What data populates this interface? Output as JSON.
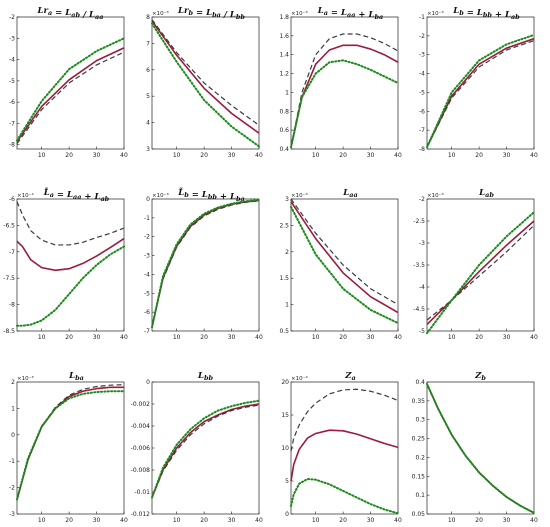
{
  "chart_data": [
    {
      "type": "line",
      "title": "Lr_a = L_ab / L_aa",
      "x": [
        1,
        40
      ],
      "xticks": [
        10,
        20,
        30,
        40
      ],
      "ylim": [
        -8.2,
        -2
      ],
      "yticks": [
        -8,
        -7,
        -6,
        -5,
        -4,
        -3,
        -2
      ],
      "ytick_labels": [
        "-8",
        "-7",
        "-6",
        "-5",
        "-4",
        "-3",
        "-2"
      ],
      "exponent": "",
      "series": [
        {
          "style": "solid",
          "x": [
            1,
            10,
            20,
            30,
            40
          ],
          "values": [
            -7.85,
            -6.2,
            -4.95,
            -4.05,
            -3.45
          ]
        },
        {
          "style": "dashed",
          "x": [
            1,
            10,
            20,
            30,
            40
          ],
          "values": [
            -7.95,
            -6.35,
            -5.1,
            -4.25,
            -3.65
          ]
        },
        {
          "style": "dotted",
          "x": [
            1,
            10,
            20,
            30,
            40
          ],
          "values": [
            -7.8,
            -5.95,
            -4.45,
            -3.6,
            -3.0
          ]
        }
      ]
    },
    {
      "type": "line",
      "title": "Lr_b = L_ba / L_bb",
      "x": [
        1,
        40
      ],
      "xticks": [
        10,
        20,
        30,
        40
      ],
      "ylim": [
        3,
        8
      ],
      "yticks": [
        3,
        4,
        5,
        6,
        7,
        8
      ],
      "ytick_labels": [
        "3",
        "4",
        "5",
        "6",
        "7",
        "8"
      ],
      "exponent": "×10⁻³",
      "series": [
        {
          "style": "solid",
          "x": [
            1,
            10,
            20,
            30,
            40
          ],
          "values": [
            7.85,
            6.55,
            5.3,
            4.35,
            3.6
          ]
        },
        {
          "style": "dashed",
          "x": [
            1,
            10,
            20,
            30,
            40
          ],
          "values": [
            7.9,
            6.65,
            5.5,
            4.65,
            3.9
          ]
        },
        {
          "style": "dotted",
          "x": [
            1,
            10,
            20,
            30,
            40
          ],
          "values": [
            7.75,
            6.3,
            4.85,
            3.85,
            3.1
          ]
        }
      ]
    },
    {
      "type": "line",
      "title": "L_a = L_aa + L_ba",
      "x": [
        1,
        40
      ],
      "xticks": [
        10,
        20,
        30,
        40
      ],
      "ylim": [
        0.4,
        1.8
      ],
      "yticks": [
        0.4,
        0.6,
        0.8,
        1,
        1.2,
        1.4,
        1.6,
        1.8
      ],
      "ytick_labels": [
        "0.4",
        "0.6",
        "0.8",
        "1",
        "1.2",
        "1.4",
        "1.6",
        "1.8"
      ],
      "exponent": "×10⁻³",
      "series": [
        {
          "style": "solid",
          "x": [
            1,
            5,
            10,
            15,
            20,
            25,
            30,
            35,
            40
          ],
          "values": [
            0.42,
            0.95,
            1.3,
            1.45,
            1.5,
            1.5,
            1.46,
            1.4,
            1.32
          ]
        },
        {
          "style": "dashed",
          "x": [
            1,
            5,
            10,
            15,
            20,
            25,
            30,
            35,
            40
          ],
          "values": [
            0.42,
            1.0,
            1.4,
            1.57,
            1.62,
            1.62,
            1.58,
            1.52,
            1.44
          ]
        },
        {
          "style": "dotted",
          "x": [
            1,
            5,
            10,
            15,
            20,
            25,
            30,
            35,
            40
          ],
          "values": [
            0.42,
            0.95,
            1.2,
            1.32,
            1.34,
            1.3,
            1.24,
            1.17,
            1.1
          ]
        }
      ]
    },
    {
      "type": "line",
      "title": "L_b = L_bb + L_ab",
      "x": [
        1,
        40
      ],
      "xticks": [
        10,
        20,
        30,
        40
      ],
      "ylim": [
        -8,
        -1
      ],
      "yticks": [
        -8,
        -7,
        -6,
        -5,
        -4,
        -3,
        -2,
        -1
      ],
      "ytick_labels": [
        "-8",
        "-7",
        "-6",
        "-5",
        "-4",
        "-3",
        "-2",
        "-1"
      ],
      "exponent": "×10⁻³",
      "series": [
        {
          "style": "solid",
          "x": [
            1,
            10,
            20,
            30,
            40
          ],
          "values": [
            -7.9,
            -5.2,
            -3.5,
            -2.65,
            -2.15
          ]
        },
        {
          "style": "dashed",
          "x": [
            1,
            10,
            20,
            30,
            40
          ],
          "values": [
            -7.9,
            -5.3,
            -3.65,
            -2.75,
            -2.25
          ]
        },
        {
          "style": "dotted",
          "x": [
            1,
            10,
            20,
            30,
            40
          ],
          "values": [
            -7.9,
            -5.0,
            -3.3,
            -2.45,
            -1.95
          ]
        }
      ]
    },
    {
      "type": "line",
      "title": "L̃_a = L_aa + L_ab",
      "x": [
        1,
        40
      ],
      "xticks": [
        10,
        20,
        30,
        40
      ],
      "ylim": [
        -8.5,
        -6
      ],
      "yticks": [
        -8.5,
        -8,
        -7.5,
        -7,
        -6.5,
        -6
      ],
      "ytick_labels": [
        "-8.5",
        "-8",
        "-7.5",
        "-7",
        "-6.5",
        "-6"
      ],
      "exponent": "×10⁻⁴",
      "series": [
        {
          "style": "solid",
          "x": [
            1,
            3,
            6,
            10,
            15,
            20,
            25,
            30,
            35,
            40
          ],
          "values": [
            -6.8,
            -6.9,
            -7.15,
            -7.3,
            -7.35,
            -7.32,
            -7.22,
            -7.08,
            -6.92,
            -6.75
          ]
        },
        {
          "style": "dashed",
          "x": [
            1,
            3,
            6,
            10,
            15,
            20,
            25,
            30,
            35,
            40
          ],
          "values": [
            -6.05,
            -6.3,
            -6.6,
            -6.78,
            -6.87,
            -6.87,
            -6.82,
            -6.73,
            -6.65,
            -6.55
          ]
        },
        {
          "style": "dotted",
          "x": [
            1,
            3,
            6,
            10,
            15,
            20,
            25,
            30,
            35,
            40
          ],
          "values": [
            -8.4,
            -8.4,
            -8.38,
            -8.3,
            -8.1,
            -7.8,
            -7.5,
            -7.25,
            -7.05,
            -6.9
          ]
        }
      ]
    },
    {
      "type": "line",
      "title": "L̃_b = L_bb + L_ba",
      "x": [
        1,
        40
      ],
      "xticks": [
        10,
        20,
        30,
        40
      ],
      "ylim": [
        -7,
        0
      ],
      "yticks": [
        -7,
        -6,
        -5,
        -4,
        -3,
        -2,
        -1,
        0
      ],
      "ytick_labels": [
        "-7",
        "-6",
        "-5",
        "-4",
        "-3",
        "-2",
        "-1",
        "0"
      ],
      "exponent": "×10⁻³",
      "series": [
        {
          "style": "solid",
          "x": [
            1,
            5,
            10,
            15,
            20,
            25,
            30,
            35,
            40
          ],
          "values": [
            -6.8,
            -4.2,
            -2.5,
            -1.45,
            -0.85,
            -0.5,
            -0.28,
            -0.15,
            -0.08
          ]
        },
        {
          "style": "dashed",
          "x": [
            1,
            5,
            10,
            15,
            20,
            25,
            30,
            35,
            40
          ],
          "values": [
            -6.8,
            -4.25,
            -2.55,
            -1.5,
            -0.9,
            -0.55,
            -0.32,
            -0.18,
            -0.1
          ]
        },
        {
          "style": "dotted",
          "x": [
            1,
            5,
            10,
            15,
            20,
            25,
            30,
            35,
            40
          ],
          "values": [
            -6.8,
            -4.1,
            -2.4,
            -1.35,
            -0.78,
            -0.45,
            -0.25,
            -0.12,
            -0.05
          ]
        }
      ]
    },
    {
      "type": "line",
      "title": "L_aa",
      "x": [
        1,
        40
      ],
      "xticks": [
        10,
        20,
        30,
        40
      ],
      "ylim": [
        0.5,
        3
      ],
      "yticks": [
        0.5,
        1,
        1.5,
        2,
        2.5,
        3
      ],
      "ytick_labels": [
        "0.5",
        "1",
        "1.5",
        "2",
        "2.5",
        "3"
      ],
      "exponent": "×10⁻³",
      "series": [
        {
          "style": "solid",
          "x": [
            1,
            10,
            20,
            30,
            40
          ],
          "values": [
            2.95,
            2.25,
            1.6,
            1.15,
            0.85
          ]
        },
        {
          "style": "dashed",
          "x": [
            1,
            10,
            20,
            30,
            40
          ],
          "values": [
            3.0,
            2.35,
            1.75,
            1.3,
            1.0
          ]
        },
        {
          "style": "dotted",
          "x": [
            1,
            10,
            20,
            30,
            40
          ],
          "values": [
            2.85,
            1.95,
            1.3,
            0.9,
            0.65
          ]
        }
      ]
    },
    {
      "type": "line",
      "title": "L_ab",
      "x": [
        1,
        40
      ],
      "xticks": [
        10,
        20,
        30,
        40
      ],
      "ylim": [
        -5,
        -2
      ],
      "yticks": [
        -5,
        -4.5,
        -4,
        -3.5,
        -3,
        -2.5,
        -2
      ],
      "ytick_labels": [
        "-5",
        "-4.5",
        "-4",
        "-3.5",
        "-3",
        "-2.5",
        "-2"
      ],
      "exponent": "×10⁻³",
      "series": [
        {
          "style": "solid",
          "x": [
            1,
            10,
            20,
            30,
            40
          ],
          "values": [
            -4.85,
            -4.3,
            -3.65,
            -3.05,
            -2.5
          ]
        },
        {
          "style": "dashed",
          "x": [
            1,
            10,
            20,
            30,
            40
          ],
          "values": [
            -4.75,
            -4.3,
            -3.75,
            -3.2,
            -2.6
          ]
        },
        {
          "style": "dotted",
          "x": [
            1,
            10,
            20,
            30,
            40
          ],
          "values": [
            -5.05,
            -4.3,
            -3.5,
            -2.85,
            -2.3
          ]
        }
      ]
    },
    {
      "type": "line",
      "title": "L_ba",
      "x": [
        1,
        40
      ],
      "xticks": [
        10,
        20,
        30,
        40
      ],
      "ylim": [
        -3,
        2
      ],
      "yticks": [
        -3,
        -2,
        -1,
        0,
        1,
        2
      ],
      "ytick_labels": [
        "-3",
        "-2",
        "-1",
        "0",
        "1",
        "2"
      ],
      "exponent": "×10⁻³",
      "series": [
        {
          "style": "solid",
          "x": [
            1,
            5,
            10,
            15,
            20,
            25,
            30,
            35,
            40
          ],
          "values": [
            -2.45,
            -0.95,
            0.3,
            1.0,
            1.45,
            1.65,
            1.75,
            1.8,
            1.8
          ]
        },
        {
          "style": "dashed",
          "x": [
            1,
            5,
            10,
            15,
            20,
            25,
            30,
            35,
            40
          ],
          "values": [
            -2.45,
            -0.95,
            0.3,
            1.05,
            1.5,
            1.72,
            1.83,
            1.88,
            1.9
          ]
        },
        {
          "style": "dotted",
          "x": [
            1,
            5,
            10,
            15,
            20,
            25,
            30,
            35,
            40
          ],
          "values": [
            -2.45,
            -0.9,
            0.32,
            1.0,
            1.38,
            1.55,
            1.62,
            1.65,
            1.65
          ]
        }
      ]
    },
    {
      "type": "line",
      "title": "L_bb",
      "x": [
        1,
        40
      ],
      "xticks": [
        10,
        20,
        30,
        40
      ],
      "ylim": [
        -0.012,
        0
      ],
      "yticks": [
        -0.012,
        -0.01,
        -0.008,
        -0.006,
        -0.004,
        -0.002,
        0
      ],
      "ytick_labels": [
        "-0.012",
        "-0.01",
        "-0.008",
        "-0.006",
        "-0.004",
        "-0.002",
        "0"
      ],
      "exponent": "",
      "series": [
        {
          "style": "solid",
          "x": [
            1,
            5,
            10,
            15,
            20,
            25,
            30,
            35,
            40
          ],
          "values": [
            -0.0105,
            -0.008,
            -0.006,
            -0.0046,
            -0.0036,
            -0.003,
            -0.0025,
            -0.0022,
            -0.002
          ]
        },
        {
          "style": "dashed",
          "x": [
            1,
            5,
            10,
            15,
            20,
            25,
            30,
            35,
            40
          ],
          "values": [
            -0.0105,
            -0.0081,
            -0.0062,
            -0.0048,
            -0.0038,
            -0.0031,
            -0.0026,
            -0.0023,
            -0.0021
          ]
        },
        {
          "style": "dotted",
          "x": [
            1,
            5,
            10,
            15,
            20,
            25,
            30,
            35,
            40
          ],
          "values": [
            -0.0105,
            -0.0078,
            -0.0057,
            -0.0043,
            -0.0033,
            -0.0026,
            -0.0022,
            -0.0019,
            -0.0017
          ]
        }
      ]
    },
    {
      "type": "line",
      "title": "Z_a",
      "x": [
        1,
        40
      ],
      "xticks": [
        10,
        20,
        30,
        40
      ],
      "ylim": [
        0,
        20
      ],
      "yticks": [
        0,
        5,
        10,
        15,
        20
      ],
      "ytick_labels": [
        "0",
        "5",
        "10",
        "15",
        "20"
      ],
      "exponent": "×10⁻⁴",
      "series": [
        {
          "style": "solid",
          "x": [
            1,
            2,
            4,
            7,
            10,
            15,
            20,
            25,
            30,
            35,
            40
          ],
          "values": [
            5,
            7.5,
            9.8,
            11.5,
            12.2,
            12.7,
            12.6,
            12.1,
            11.4,
            10.7,
            10.1
          ]
        },
        {
          "style": "dashed",
          "x": [
            1,
            2,
            4,
            7,
            10,
            15,
            20,
            25,
            30,
            35,
            40
          ],
          "values": [
            9.5,
            11.5,
            13.5,
            15.5,
            16.8,
            18.2,
            18.8,
            18.9,
            18.6,
            18.0,
            17.2
          ]
        },
        {
          "style": "dotted",
          "x": [
            1,
            2,
            4,
            7,
            10,
            15,
            20,
            25,
            30,
            35,
            40
          ],
          "values": [
            1.2,
            3.0,
            4.6,
            5.3,
            5.2,
            4.5,
            3.5,
            2.5,
            1.5,
            0.7,
            0.1
          ]
        }
      ]
    },
    {
      "type": "line",
      "title": "Z_b",
      "x": [
        1,
        40
      ],
      "xticks": [
        10,
        20,
        30,
        40
      ],
      "ylim": [
        0.05,
        0.4
      ],
      "yticks": [
        0.05,
        0.1,
        0.15,
        0.2,
        0.25,
        0.3,
        0.35,
        0.4
      ],
      "ytick_labels": [
        "0.05",
        "0.1",
        "0.15",
        "0.2",
        "0.25",
        "0.3",
        "0.35",
        "0.4"
      ],
      "exponent": "",
      "series": [
        {
          "style": "solid",
          "x": [
            1,
            5,
            10,
            15,
            20,
            25,
            30,
            35,
            40
          ],
          "values": [
            0.395,
            0.33,
            0.26,
            0.205,
            0.16,
            0.125,
            0.095,
            0.072,
            0.053
          ]
        },
        {
          "style": "dashed",
          "x": [
            1,
            5,
            10,
            15,
            20,
            25,
            30,
            35,
            40
          ],
          "values": [
            0.395,
            0.33,
            0.26,
            0.205,
            0.16,
            0.125,
            0.095,
            0.072,
            0.053
          ]
        },
        {
          "style": "dotted",
          "x": [
            1,
            5,
            10,
            15,
            20,
            25,
            30,
            35,
            40
          ],
          "values": [
            0.395,
            0.33,
            0.26,
            0.205,
            0.16,
            0.125,
            0.095,
            0.072,
            0.053
          ]
        }
      ]
    }
  ],
  "colors": {
    "solid": "#9b1b3c",
    "dashed": "#3b3b3b",
    "dotted": "#1a8a1a",
    "axis": "#222222"
  }
}
